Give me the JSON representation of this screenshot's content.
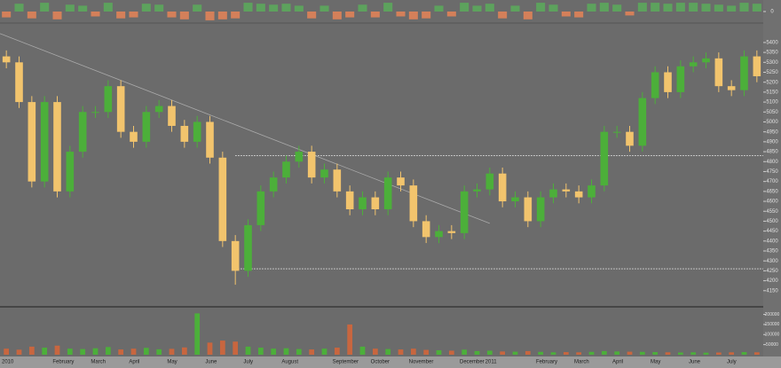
{
  "chart_data": [
    {
      "type": "bar",
      "panel": "indicator",
      "values": [
        -0.6,
        0.8,
        -0.7,
        0.9,
        -0.8,
        0.7,
        0.6,
        -0.5,
        0.9,
        -0.7,
        -0.6,
        0.8,
        0.7,
        -0.6,
        -0.8,
        0.7,
        -0.9,
        -0.8,
        -0.7,
        0.9,
        0.8,
        0.7,
        0.8,
        0.6,
        -0.7,
        0.6,
        -0.8,
        -0.6,
        0.7,
        -0.6,
        0.9,
        -0.5,
        -0.8,
        -0.7,
        0.6,
        -0.5,
        0.9,
        0.6,
        0.8,
        -0.7,
        0.6,
        -0.8,
        0.9,
        0.7,
        -0.5,
        -0.6,
        0.8,
        0.9,
        0.7,
        -0.4,
        0.9,
        0.9,
        0.8,
        0.9,
        0.9,
        0.8,
        0.7,
        0.6,
        0.9,
        0.8
      ],
      "up_color": "#5da25d",
      "down_color": "#d4805a",
      "ylim": [
        -1,
        1
      ],
      "yticks": [
        0
      ]
    },
    {
      "type": "candlestick",
      "panel": "price",
      "categories": [
        "2010",
        null,
        null,
        null,
        "February",
        null,
        null,
        "March",
        null,
        null,
        "April",
        null,
        null,
        "May",
        null,
        null,
        "June",
        null,
        null,
        "July",
        null,
        null,
        "August",
        null,
        null,
        null,
        "September",
        null,
        null,
        "October",
        null,
        null,
        "November",
        null,
        null,
        null,
        "December",
        null,
        "2011",
        null,
        null,
        null,
        "February",
        null,
        null,
        "March",
        null,
        null,
        "April",
        null,
        null,
        "May",
        null,
        null,
        "June",
        null,
        null,
        "July",
        null,
        null
      ],
      "open": [
        5330,
        5300,
        5100,
        4700,
        5100,
        4650,
        4850,
        5050,
        5050,
        5180,
        4950,
        4900,
        5050,
        5080,
        4980,
        4900,
        5000,
        4820,
        4400,
        4250,
        4480,
        4650,
        4720,
        4800,
        4850,
        4720,
        4760,
        4650,
        4560,
        4620,
        4560,
        4720,
        4680,
        4500,
        4420,
        4450,
        4440,
        4650,
        4660,
        4740,
        4600,
        4620,
        4500,
        4620,
        4660,
        4650,
        4620,
        4680,
        4950,
        4950,
        4880,
        5120,
        5250,
        5150,
        5280,
        5300,
        5320,
        5180,
        5160,
        5330
      ],
      "high": [
        5360,
        5330,
        5130,
        5130,
        5130,
        4880,
        5080,
        5080,
        5210,
        5210,
        4980,
        5080,
        5110,
        5110,
        5010,
        5030,
        5030,
        4850,
        4430,
        4510,
        4680,
        4750,
        4830,
        4880,
        4880,
        4790,
        4790,
        4680,
        4650,
        4650,
        4750,
        4750,
        4710,
        4530,
        4480,
        4480,
        4680,
        4690,
        4770,
        4770,
        4650,
        4650,
        4650,
        4690,
        4690,
        4680,
        4710,
        4980,
        4980,
        4980,
        5150,
        5280,
        5280,
        5310,
        5330,
        5350,
        5350,
        5210,
        5360,
        5360
      ],
      "low": [
        5270,
        5070,
        4670,
        4670,
        4620,
        4620,
        4820,
        5020,
        5020,
        4920,
        4870,
        4870,
        5020,
        4950,
        4870,
        4870,
        4790,
        4370,
        4180,
        4220,
        4450,
        4620,
        4690,
        4770,
        4690,
        4690,
        4620,
        4530,
        4530,
        4530,
        4530,
        4650,
        4470,
        4390,
        4390,
        4410,
        4410,
        4620,
        4630,
        4570,
        4570,
        4470,
        4470,
        4590,
        4620,
        4590,
        4590,
        4650,
        4920,
        4850,
        4850,
        5090,
        5120,
        5120,
        5250,
        5270,
        5150,
        5130,
        5130,
        5200
      ],
      "close": [
        5300,
        5100,
        4700,
        5100,
        4650,
        4850,
        5050,
        5050,
        5180,
        4950,
        4900,
        5050,
        5080,
        4980,
        4900,
        5000,
        4820,
        4400,
        4250,
        4480,
        4650,
        4720,
        4800,
        4850,
        4720,
        4760,
        4650,
        4560,
        4620,
        4560,
        4720,
        4680,
        4500,
        4420,
        4450,
        4440,
        4650,
        4660,
        4740,
        4600,
        4620,
        4500,
        4620,
        4660,
        4650,
        4620,
        4680,
        4950,
        4950,
        4880,
        5120,
        5250,
        5150,
        5280,
        5300,
        5320,
        5180,
        5160,
        5330,
        5230
      ],
      "up_color": "#4caf3a",
      "down_color": "#f2c46d",
      "ylim": [
        4100,
        5480
      ],
      "yticks": [
        4150,
        4200,
        4250,
        4300,
        4350,
        4400,
        4450,
        4500,
        4550,
        4600,
        4650,
        4700,
        4750,
        4800,
        4850,
        4900,
        4950,
        5000,
        5050,
        5100,
        5150,
        5200,
        5250,
        5300,
        5350,
        5400
      ],
      "levels": [
        4830,
        4260
      ],
      "trendline": [
        5445,
        4489
      ],
      "trendline_x": [
        0,
        38
      ]
    },
    {
      "type": "volume",
      "panel": "volume",
      "values": [
        30000,
        25000,
        40000,
        35000,
        45000,
        30000,
        28000,
        32000,
        38000,
        26000,
        30000,
        34000,
        27000,
        29000,
        36000,
        205000,
        60000,
        70000,
        65000,
        40000,
        35000,
        30000,
        32000,
        28000,
        26000,
        30000,
        35000,
        150000,
        40000,
        30000,
        28000,
        26000,
        30000,
        24000,
        22000,
        20000,
        25000,
        18000,
        20000,
        16000,
        15000,
        18000,
        14000,
        12000,
        13000,
        12000,
        14000,
        18000,
        16000,
        15000,
        14000,
        13000,
        12000,
        11000,
        12000,
        10000,
        11000,
        12000,
        13000,
        12000
      ],
      "ylim": [
        0,
        220000
      ],
      "yticks": [
        50000,
        100000,
        150000,
        200000
      ]
    }
  ]
}
